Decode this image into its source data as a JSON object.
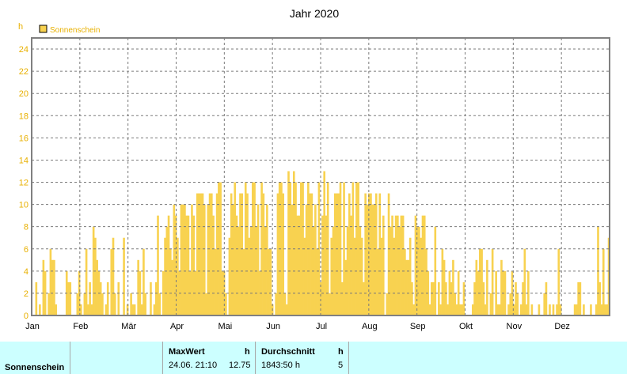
{
  "chart_data": {
    "type": "bar",
    "title": "Jahr 2020",
    "yunit": "h",
    "ylim": [
      0,
      25
    ],
    "yticks": [
      "0",
      "2",
      "4",
      "6",
      "8",
      "10",
      "12",
      "14",
      "16",
      "18",
      "20",
      "22",
      "24"
    ],
    "months": [
      "Jan",
      "Feb",
      "Mär",
      "Apr",
      "Mai",
      "Jun",
      "Jul",
      "Aug",
      "Sep",
      "Okt",
      "Nov",
      "Dez"
    ],
    "grid": true,
    "legend_position": "top-left",
    "series": [
      {
        "name": "Sonnenschein",
        "color": "#f8d250",
        "values": [
          0,
          0,
          3,
          0,
          1,
          0,
          5,
          4,
          0,
          2,
          6,
          5,
          5,
          1,
          0,
          0,
          0,
          0,
          0,
          4,
          3,
          3,
          0,
          0,
          0,
          2,
          4,
          1,
          0,
          2,
          6,
          1,
          3,
          1,
          8,
          7,
          5,
          4,
          3,
          2,
          0,
          1,
          3,
          0,
          6,
          7,
          2,
          0,
          3,
          0,
          0,
          7,
          0,
          1,
          0,
          2,
          1,
          1,
          0,
          5,
          4,
          1,
          6,
          2,
          0,
          0,
          3,
          0,
          1,
          3,
          9,
          2,
          0,
          4,
          7,
          8,
          9,
          6,
          5,
          10,
          9,
          7,
          4,
          10,
          10,
          10,
          9,
          9,
          4,
          10,
          9,
          4,
          11,
          11,
          11,
          11,
          10,
          2,
          10,
          11,
          11,
          9,
          6,
          11,
          12,
          12,
          4,
          4,
          2,
          0,
          7,
          11,
          10,
          12,
          9,
          8,
          11,
          11,
          6,
          12,
          11,
          7,
          8,
          12,
          12,
          8,
          10,
          4,
          12,
          11,
          8,
          10,
          6,
          6,
          1,
          0,
          2,
          11,
          12,
          12,
          11,
          2,
          1,
          13,
          12,
          10,
          13,
          12,
          9,
          9,
          12,
          12,
          7,
          10,
          12,
          11,
          11,
          8,
          10,
          6,
          12,
          3,
          9,
          13,
          9,
          12,
          2,
          7,
          8,
          11,
          11,
          11,
          12,
          3,
          12,
          5,
          8,
          11,
          9,
          12,
          7,
          12,
          12,
          8,
          7,
          3,
          11,
          10,
          11,
          11,
          10,
          10,
          11,
          6,
          11,
          7,
          9,
          0,
          2,
          11,
          8,
          9,
          7,
          9,
          9,
          8,
          9,
          9,
          6,
          5,
          5,
          7,
          3,
          1,
          9,
          8,
          8,
          7,
          9,
          9,
          6,
          4,
          1,
          3,
          3,
          8,
          0,
          3,
          1,
          6,
          5,
          3,
          1,
          4,
          3,
          5,
          2,
          1,
          4,
          1,
          1,
          3,
          0,
          0,
          0,
          0,
          1,
          3,
          5,
          4,
          6,
          6,
          3,
          1,
          5,
          0,
          2,
          6,
          0,
          4,
          1,
          1,
          5,
          4,
          4,
          0,
          1,
          2,
          4,
          1,
          3,
          2,
          0,
          1,
          3,
          6,
          1,
          4,
          0,
          1,
          0,
          0,
          0,
          1,
          0,
          0,
          2,
          3,
          0,
          1,
          0,
          1,
          0,
          1,
          6,
          1,
          0,
          0,
          0,
          0,
          0,
          0,
          0,
          1,
          1,
          3,
          3,
          0,
          1,
          0,
          0,
          0,
          1,
          0,
          0,
          1,
          8,
          3,
          1,
          6,
          1,
          1,
          7
        ]
      }
    ]
  },
  "stats": {
    "row_label": "Sonnenschein",
    "max_header": "MaxWert",
    "max_unit": "h",
    "max_date": "24.06.  21:10",
    "max_value": "12.75",
    "avg_header": "Durchschnitt",
    "avg_unit": "h",
    "avg_total": "1843:50 h",
    "avg_value": "5"
  }
}
